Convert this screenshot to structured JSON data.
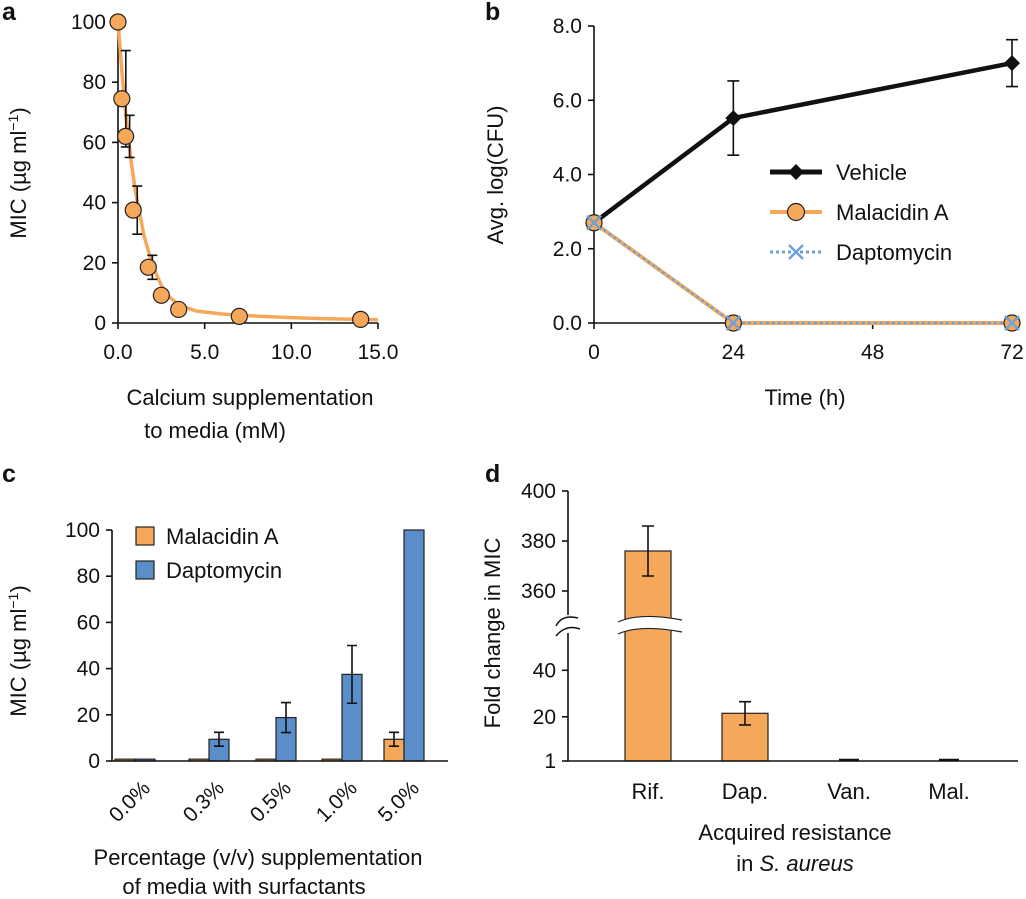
{
  "colors": {
    "orange": "#F6A85A",
    "blue": "#5B8DC8",
    "black": "#111111",
    "dapt_line": "#6FA3D8"
  },
  "chart_data": [
    {
      "panel": "a",
      "type": "scatter",
      "title": "",
      "xlabel": [
        "Calcium supplementation",
        "to media (mM)"
      ],
      "ylabel": "MIC (µg ml",
      "ylabel_sup": "−1",
      "ylabel_close": ")",
      "xlim": [
        0,
        15
      ],
      "ylim": [
        0,
        100
      ],
      "xticks": [
        0,
        5,
        10,
        15
      ],
      "xtick_labels": [
        "0.0",
        "5.0",
        "10.0",
        "15.0"
      ],
      "yticks": [
        0,
        20,
        40,
        60,
        80,
        100
      ],
      "ytick_labels": [
        "0",
        "20",
        "40",
        "60",
        "80",
        "100"
      ],
      "points": [
        {
          "x": 0.0,
          "y": 100,
          "err": 0
        },
        {
          "x": 0.22,
          "y": 74.5,
          "err": 16
        },
        {
          "x": 0.44,
          "y": 62,
          "err": 7
        },
        {
          "x": 0.88,
          "y": 37.5,
          "err": 8
        },
        {
          "x": 1.75,
          "y": 18.5,
          "err": 4
        },
        {
          "x": 2.5,
          "y": 9.2,
          "err": 0
        },
        {
          "x": 3.5,
          "y": 4.5,
          "err": 0
        },
        {
          "x": 7.0,
          "y": 2.2,
          "err": 0
        },
        {
          "x": 14.0,
          "y": 1.2,
          "err": 0
        }
      ],
      "fit": [
        [
          0,
          100
        ],
        [
          0.25,
          82
        ],
        [
          0.5,
          66
        ],
        [
          0.75,
          54
        ],
        [
          1.0,
          44
        ],
        [
          1.5,
          29
        ],
        [
          2.0,
          19
        ],
        [
          2.5,
          12.5
        ],
        [
          3.0,
          8.5
        ],
        [
          3.5,
          6.0
        ],
        [
          4.5,
          4.0
        ],
        [
          6,
          3.0
        ],
        [
          8,
          2.3
        ],
        [
          10,
          1.8
        ],
        [
          12,
          1.4
        ],
        [
          14,
          1.2
        ],
        [
          15,
          1.1
        ]
      ]
    },
    {
      "panel": "b",
      "type": "line",
      "title": "",
      "xlabel": "Time (h)",
      "ylabel": "Avg. log(CFU)",
      "xlim": [
        0,
        72
      ],
      "ylim": [
        0,
        8
      ],
      "xticks": [
        0,
        24,
        48,
        72
      ],
      "xtick_labels": [
        "0",
        "24",
        "48",
        "72"
      ],
      "yticks": [
        0,
        2,
        4,
        6,
        8
      ],
      "ytick_labels": [
        "0.0",
        "2.0",
        "4.0",
        "6.0",
        "8.0"
      ],
      "series": [
        {
          "name": "Vehicle",
          "x": [
            0,
            24,
            72
          ],
          "values": [
            2.7,
            5.52,
            7.0
          ],
          "err": [
            0,
            1.0,
            0.63
          ]
        },
        {
          "name": "Malacidin A",
          "x": [
            0,
            24,
            72
          ],
          "values": [
            2.7,
            0.0,
            0.0
          ],
          "err": [
            0,
            0,
            0
          ]
        },
        {
          "name": "Daptomycin",
          "x": [
            0,
            24,
            72
          ],
          "values": [
            2.7,
            0.0,
            0.0
          ],
          "err": [
            0,
            0,
            0
          ]
        }
      ],
      "legend_position": "middle-right"
    },
    {
      "panel": "c",
      "type": "bar",
      "title": "",
      "xlabel": [
        "Percentage (v/v) supplementation",
        "of media with surfactants"
      ],
      "ylabel": "MIC (µg ml",
      "ylabel_sup": "−1",
      "ylabel_close": ")",
      "ylim": [
        0,
        100
      ],
      "yticks": [
        0,
        20,
        40,
        60,
        80,
        100
      ],
      "ytick_labels": [
        "0",
        "20",
        "40",
        "60",
        "80",
        "100"
      ],
      "categories": [
        "0.0%",
        "0.3%",
        "0.5%",
        "1.0%",
        "5.0%"
      ],
      "series": [
        {
          "name": "Malacidin A",
          "values": [
            0.8,
            0.8,
            0.8,
            0.8,
            9.4
          ],
          "err": [
            0,
            0,
            0,
            0,
            3
          ]
        },
        {
          "name": "Daptomycin",
          "values": [
            0.8,
            9.4,
            18.8,
            37.5,
            100
          ],
          "err": [
            0,
            3,
            6.5,
            12.5,
            0
          ]
        }
      ],
      "legend_position": "top-left"
    },
    {
      "panel": "d",
      "type": "bar",
      "title": "",
      "xlabel": [
        "Acquired resistance",
        "in "
      ],
      "xlabel_italic": "S. aureus",
      "ylabel": "Fold change in MIC",
      "ytick_labels": [
        "1",
        "20",
        "40",
        "360",
        "380",
        "400"
      ],
      "axis_break": {
        "lower": [
          1,
          50
        ],
        "upper": [
          348,
          400
        ]
      },
      "categories": [
        "Rif.",
        "Dap.",
        "Van.",
        "Mal."
      ],
      "values": [
        376,
        21.5,
        1,
        1
      ],
      "err": [
        10,
        5,
        0,
        0
      ]
    }
  ]
}
